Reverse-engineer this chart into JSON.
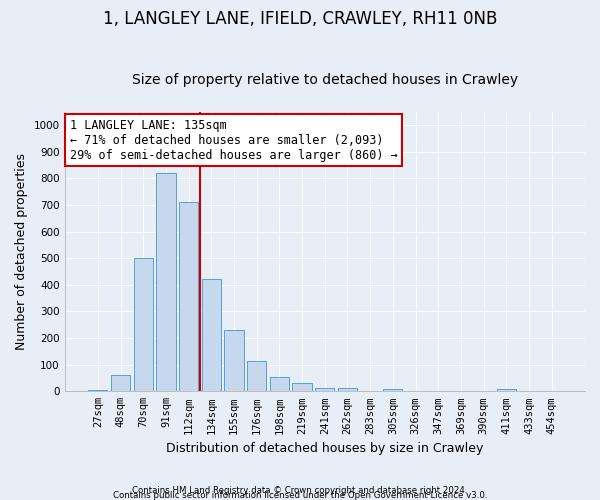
{
  "title_line1": "1, LANGLEY LANE, IFIELD, CRAWLEY, RH11 0NB",
  "title_line2": "Size of property relative to detached houses in Crawley",
  "xlabel": "Distribution of detached houses by size in Crawley",
  "ylabel": "Number of detached properties",
  "footnote1": "Contains HM Land Registry data © Crown copyright and database right 2024.",
  "footnote2": "Contains public sector information licensed under the Open Government Licence v3.0.",
  "bin_labels": [
    "27sqm",
    "48sqm",
    "70sqm",
    "91sqm",
    "112sqm",
    "134sqm",
    "155sqm",
    "176sqm",
    "198sqm",
    "219sqm",
    "241sqm",
    "262sqm",
    "283sqm",
    "305sqm",
    "326sqm",
    "347sqm",
    "369sqm",
    "390sqm",
    "411sqm",
    "433sqm",
    "454sqm"
  ],
  "bar_values": [
    5,
    60,
    500,
    820,
    710,
    420,
    230,
    115,
    55,
    30,
    12,
    12,
    0,
    10,
    0,
    0,
    0,
    0,
    7,
    0,
    0
  ],
  "bar_color": "#c5d8ed",
  "bar_edge_color": "#5a9fd4",
  "red_line_index": 5,
  "red_line_color": "#cc0000",
  "annotation_line1": "1 LANGLEY LANE: 135sqm",
  "annotation_line2": "← 71% of detached houses are smaller (2,093)",
  "annotation_line3": "29% of semi-detached houses are larger (860) →",
  "annotation_box_color": "#ffffff",
  "annotation_box_edge": "#cc0000",
  "ylim": [
    0,
    1050
  ],
  "yticks": [
    0,
    100,
    200,
    300,
    400,
    500,
    600,
    700,
    800,
    900,
    1000
  ],
  "background_color": "#e8eef5",
  "grid_color": "#ffffff",
  "title_fontsize": 12,
  "subtitle_fontsize": 10,
  "axis_label_fontsize": 9,
  "tick_fontsize": 7.5,
  "annot_fontsize": 8.5
}
